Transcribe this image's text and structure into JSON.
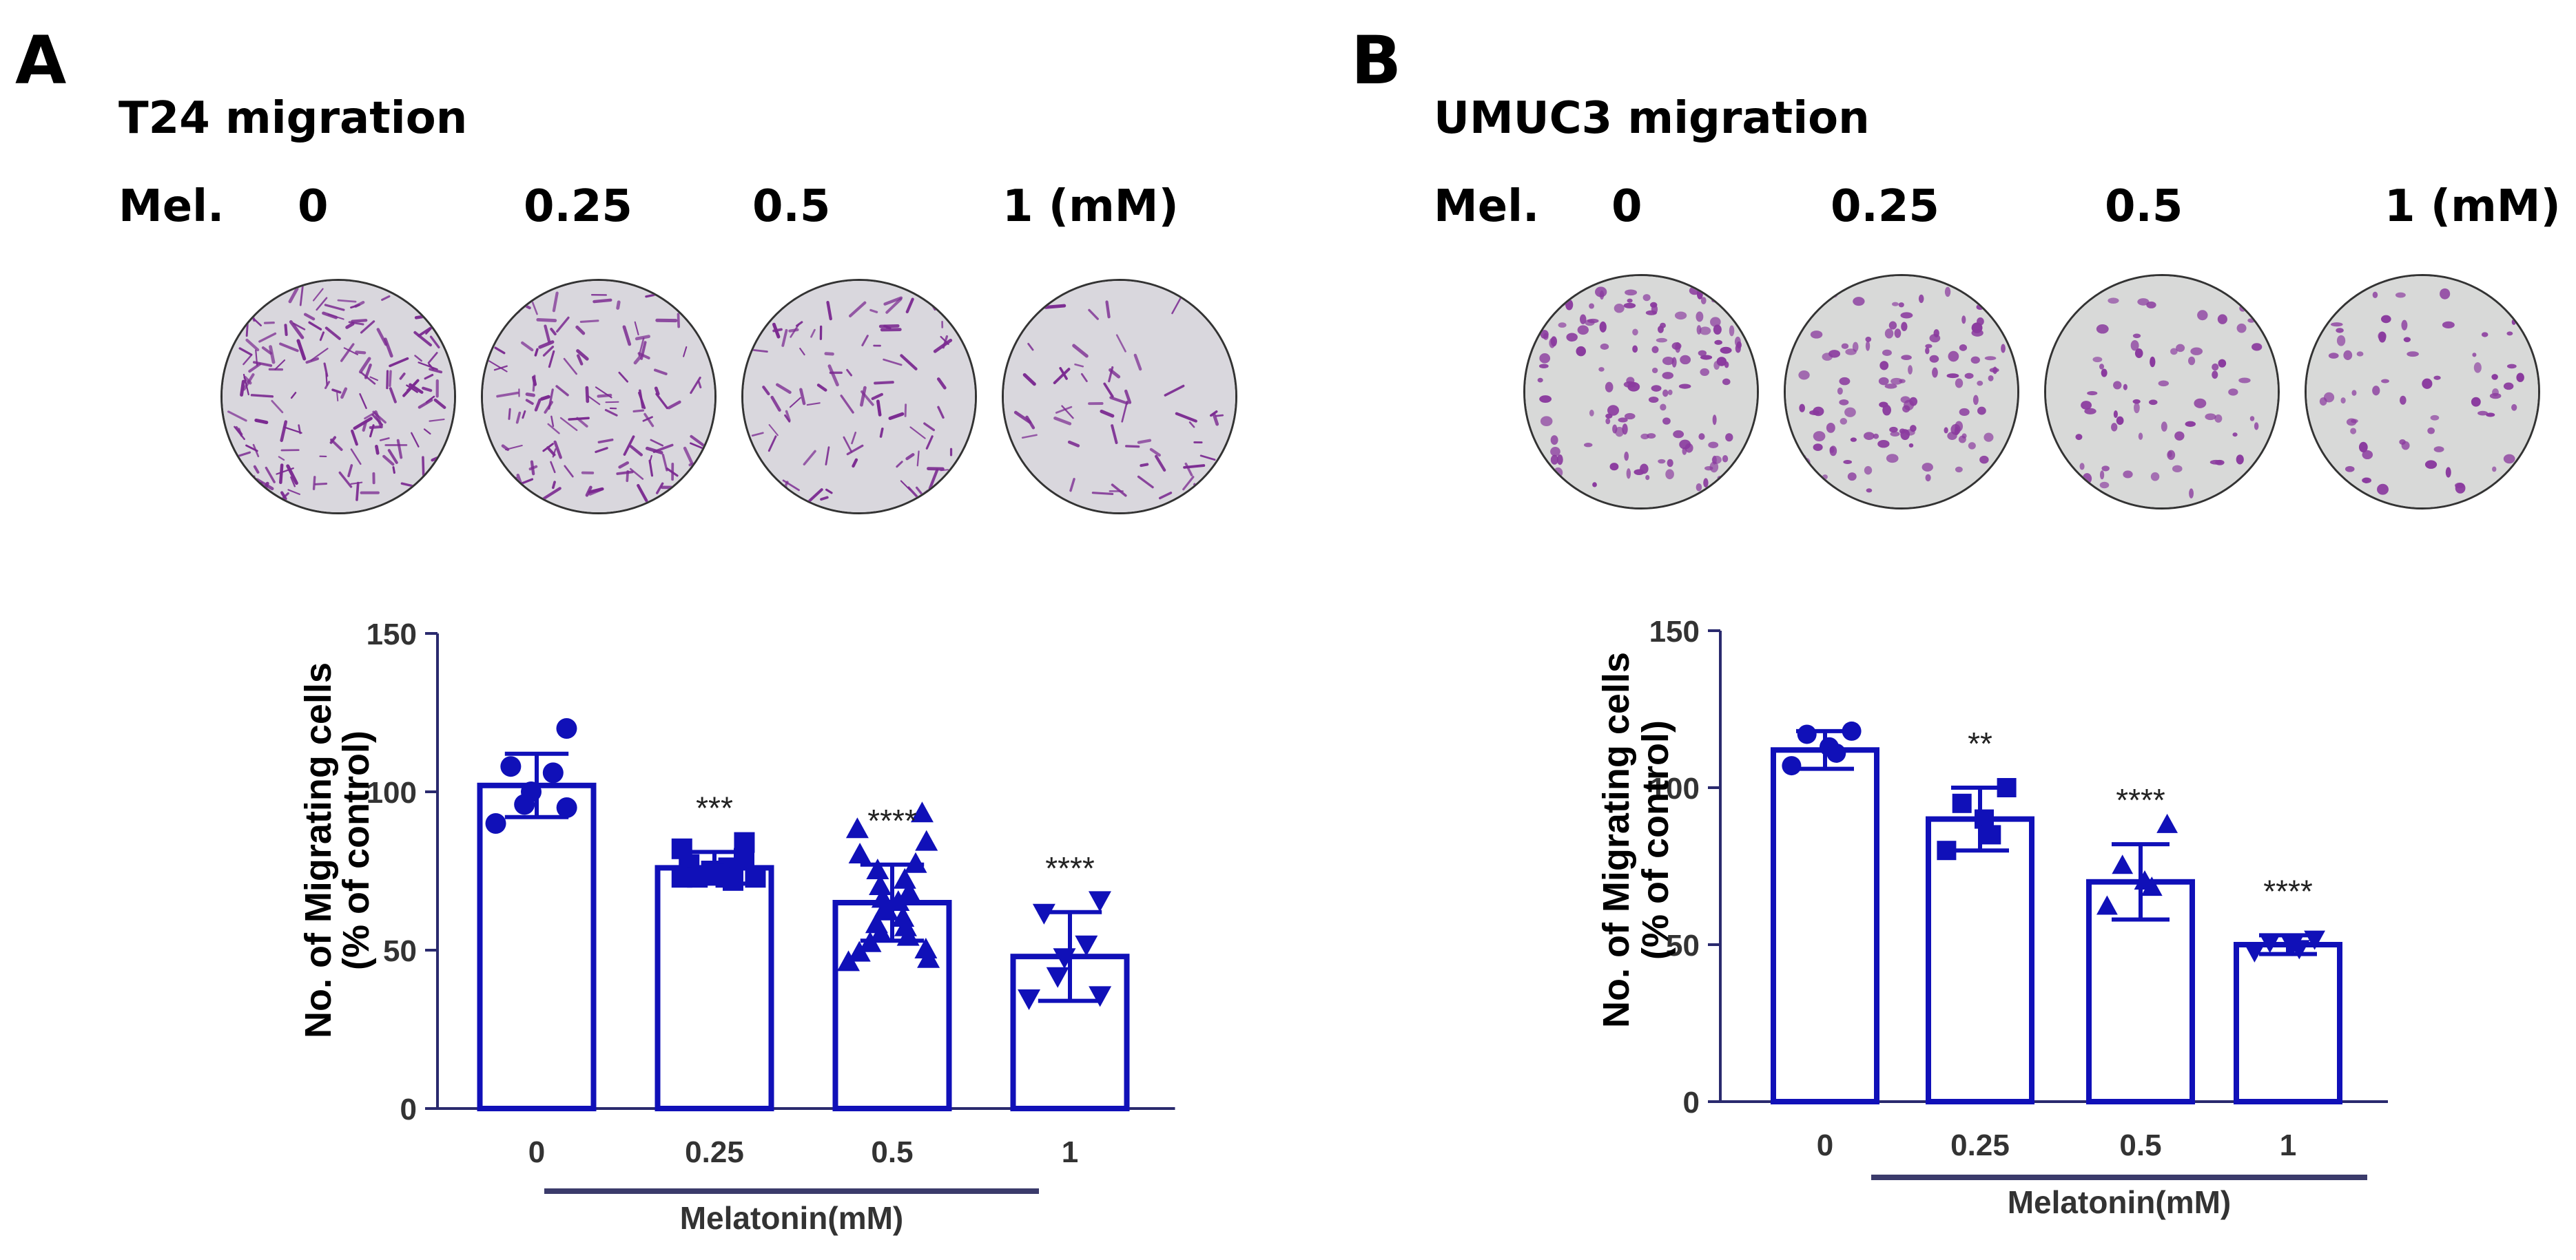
{
  "panels": [
    {
      "id": "A",
      "label": "A",
      "title": "T24 migration",
      "mel_label": "Mel.",
      "conc_labels": [
        "0",
        "0.25",
        "0.5",
        "1 (mM)"
      ],
      "dish_colors": {
        "background": "#d9d7dd",
        "cells": "#7b2a91"
      }
    },
    {
      "id": "B",
      "label": "B",
      "title": "UMUC3 migration",
      "mel_label": "Mel.",
      "conc_labels": [
        "0",
        "0.25",
        "0.5",
        "1 (mM)"
      ],
      "dish_colors": {
        "background": "#d8d9d8",
        "cells": "#8a3a9e"
      }
    }
  ],
  "chart_data": [
    {
      "type": "bar",
      "title": "",
      "categories": [
        "0",
        "0.25",
        "0.5",
        "1"
      ],
      "values": [
        102,
        76,
        65,
        48
      ],
      "errors": [
        10,
        5,
        12,
        14
      ],
      "significance": [
        "",
        "***",
        "****",
        "****"
      ],
      "markers": [
        "circle",
        "square",
        "triangle-up",
        "triangle-down"
      ],
      "points": [
        [
          120,
          108,
          106,
          100,
          96,
          95,
          90
        ],
        [
          84,
          82,
          79,
          77,
          76,
          75,
          75,
          74,
          74,
          73,
          73,
          72,
          73,
          73
        ],
        [
          93,
          88,
          84,
          80,
          77,
          75,
          72,
          70,
          68,
          66,
          65,
          63,
          62,
          60,
          58,
          57,
          55,
          54,
          52,
          50,
          49,
          47,
          46
        ],
        [
          66,
          62,
          52,
          48,
          42,
          36,
          35
        ]
      ],
      "ylabel_line1": "No. of Migrating cells",
      "ylabel_line2": "(% of control)",
      "xlabel": "Melatonin(mM)",
      "ylim": [
        0,
        150
      ],
      "yticks": [
        0,
        50,
        100,
        150
      ],
      "color": "#1010b8",
      "axis_color": "#2a2a6e"
    },
    {
      "type": "bar",
      "title": "",
      "categories": [
        "0",
        "0.25",
        "0.5",
        "1"
      ],
      "values": [
        112,
        90,
        70,
        50
      ],
      "errors": [
        6,
        10,
        12,
        3
      ],
      "significance": [
        "",
        "**",
        "****",
        "****"
      ],
      "markers": [
        "circle",
        "square",
        "triangle-up",
        "triangle-down"
      ],
      "points": [
        [
          118,
          117,
          113,
          111,
          107
        ],
        [
          100,
          95,
          90,
          85,
          80
        ],
        [
          88,
          75,
          70,
          68,
          62
        ],
        [
          52,
          51,
          50,
          49,
          48
        ]
      ],
      "ylabel_line1": "No. of Migrating cells",
      "ylabel_line2": "(% of control)",
      "xlabel": "Melatonin(mM)",
      "ylim": [
        0,
        150
      ],
      "yticks": [
        0,
        50,
        100,
        150
      ],
      "color": "#1010b8",
      "axis_color": "#2a2a6e"
    }
  ]
}
